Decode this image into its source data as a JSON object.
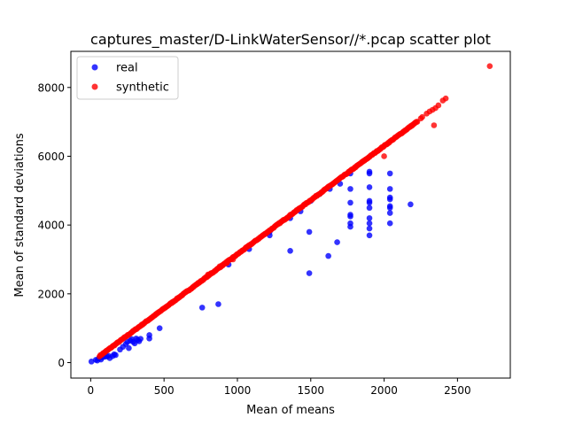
{
  "chart_data": {
    "type": "scatter",
    "title": "captures_master/D-LinkWaterSensor//*.pcap scatter plot",
    "xlabel": "Mean of means",
    "ylabel": "Mean of standard deviations",
    "xlim": [
      -135,
      2860
    ],
    "ylim": [
      -450,
      9050
    ],
    "xticks": [
      0,
      500,
      1000,
      1500,
      2000,
      2500
    ],
    "yticks": [
      0,
      2000,
      4000,
      6000,
      8000
    ],
    "grid": false,
    "legend_position": "top-left",
    "series": [
      {
        "name": "real",
        "color": "#0000ff",
        "alpha": 0.8,
        "points": [
          [
            5,
            30
          ],
          [
            35,
            80
          ],
          [
            45,
            60
          ],
          [
            55,
            120
          ],
          [
            60,
            140
          ],
          [
            70,
            90
          ],
          [
            80,
            150
          ],
          [
            95,
            170
          ],
          [
            110,
            180
          ],
          [
            120,
            200
          ],
          [
            130,
            130
          ],
          [
            150,
            190
          ],
          [
            160,
            240
          ],
          [
            170,
            220
          ],
          [
            200,
            380
          ],
          [
            220,
            460
          ],
          [
            240,
            540
          ],
          [
            250,
            600
          ],
          [
            260,
            420
          ],
          [
            270,
            640
          ],
          [
            280,
            680
          ],
          [
            290,
            600
          ],
          [
            300,
            560
          ],
          [
            310,
            700
          ],
          [
            320,
            660
          ],
          [
            330,
            620
          ],
          [
            340,
            690
          ],
          [
            400,
            700
          ],
          [
            400,
            800
          ],
          [
            470,
            1000
          ],
          [
            760,
            1600
          ],
          [
            870,
            1700
          ],
          [
            940,
            2850
          ],
          [
            1080,
            3300
          ],
          [
            1220,
            3700
          ],
          [
            1220,
            3800
          ],
          [
            1360,
            3250
          ],
          [
            1360,
            4200
          ],
          [
            1430,
            4400
          ],
          [
            1490,
            2600
          ],
          [
            1490,
            3800
          ],
          [
            1500,
            4700
          ],
          [
            1560,
            4900
          ],
          [
            1620,
            3100
          ],
          [
            1630,
            5050
          ],
          [
            1680,
            3500
          ],
          [
            1700,
            5200
          ],
          [
            1770,
            3950
          ],
          [
            1770,
            4050
          ],
          [
            1770,
            4250
          ],
          [
            1770,
            4300
          ],
          [
            1770,
            4650
          ],
          [
            1770,
            5050
          ],
          [
            1770,
            5500
          ],
          [
            1900,
            3700
          ],
          [
            1900,
            3900
          ],
          [
            1900,
            4050
          ],
          [
            1900,
            4200
          ],
          [
            1900,
            4500
          ],
          [
            1900,
            4650
          ],
          [
            1900,
            4700
          ],
          [
            1900,
            5100
          ],
          [
            1900,
            5500
          ],
          [
            1900,
            5550
          ],
          [
            2040,
            4050
          ],
          [
            2040,
            4350
          ],
          [
            2040,
            4500
          ],
          [
            2040,
            4550
          ],
          [
            2040,
            4750
          ],
          [
            2040,
            4800
          ],
          [
            2040,
            5050
          ],
          [
            2040,
            5500
          ],
          [
            2180,
            4600
          ]
        ]
      },
      {
        "name": "synthetic",
        "color": "#ff0000",
        "alpha": 0.8,
        "points": [
          [
            2000,
            6000
          ],
          [
            2340,
            6900
          ],
          [
            2720,
            8620
          ],
          [
            2400,
            7620
          ],
          [
            2420,
            7680
          ],
          [
            2370,
            7480
          ],
          [
            2350,
            7400
          ],
          [
            2330,
            7350
          ],
          [
            2310,
            7300
          ],
          [
            2290,
            7240
          ],
          [
            2260,
            7140
          ],
          [
            2250,
            7100
          ],
          [
            970,
            3000
          ],
          [
            930,
            2900
          ],
          [
            880,
            2800
          ],
          [
            820,
            2600
          ],
          [
            800,
            2560
          ]
        ],
        "band": {
          "x_from": 60,
          "x_to": 2230,
          "slope": 3.15,
          "intercept": 0,
          "spread": 25
        }
      }
    ]
  }
}
